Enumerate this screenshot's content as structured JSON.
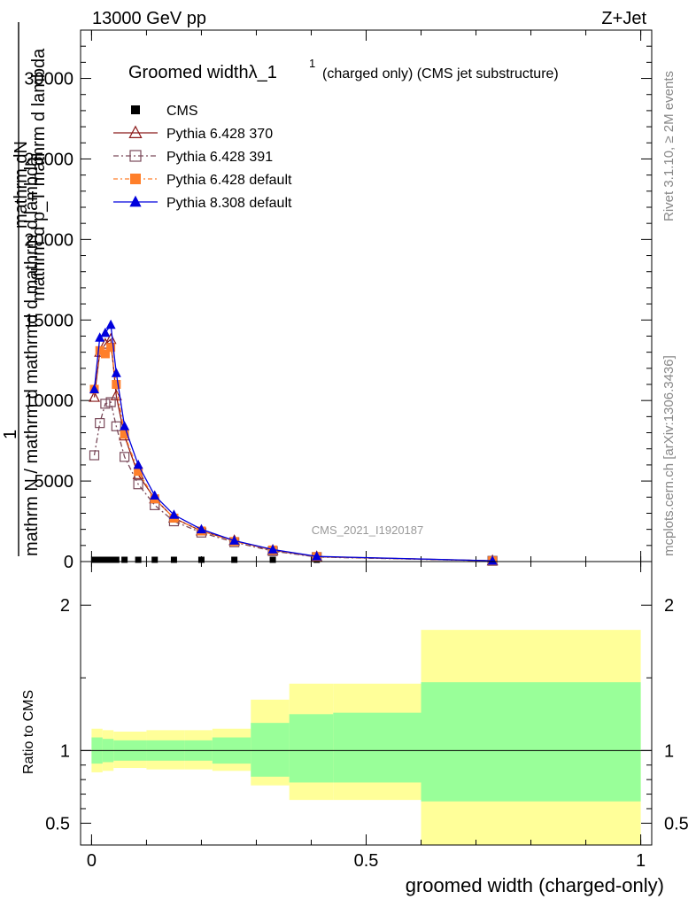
{
  "header": {
    "left": "13000 GeV pp",
    "right": "Z+Jet"
  },
  "side": {
    "rivet": "Rivet 3.1.10, ≥ 2M events",
    "mcplots": "mcplots.cern.ch [arXiv:1306.3436]"
  },
  "watermark": "CMS_2021_I1920187",
  "colors": {
    "green": "#99ff99",
    "yellow": "#ffff99"
  },
  "chart_data": [
    {
      "type": "line",
      "title": "Groomed widthλ_1",
      "title_sup": "1",
      "subtitle": "(charged only) (CMS jet substructure)",
      "ylabel_parts": [
        "mathrm dN",
        "mathrm d p_T mathrm d lambda",
        "1",
        "mathrm N / mathrm d mathrmd d mathrm d lambda"
      ],
      "xlim": [
        -0.02,
        1.02
      ],
      "ylim": [
        0,
        33000
      ],
      "yticks": [
        0,
        5000,
        10000,
        15000,
        20000,
        25000,
        30000
      ],
      "ytick_labels": [
        "0",
        "5000",
        "10000",
        "15000",
        "20000",
        "25000",
        "30000"
      ],
      "legend_position": "top-left",
      "series": [
        {
          "name": "CMS",
          "color": "#000000",
          "marker": "square",
          "x": [
            0.005,
            0.015,
            0.025,
            0.035,
            0.045,
            0.06,
            0.085,
            0.115,
            0.15,
            0.2,
            0.26,
            0.33,
            0.41,
            0.73
          ],
          "y": [
            0,
            0,
            0,
            0,
            0,
            0,
            0,
            0,
            0,
            0,
            0,
            0,
            0,
            0
          ]
        },
        {
          "name": "Pythia 6.428 370",
          "color": "#8b1a1a",
          "marker": "triangle-open",
          "x": [
            0.005,
            0.015,
            0.025,
            0.035,
            0.045,
            0.06,
            0.085,
            0.115,
            0.15,
            0.2,
            0.26,
            0.33,
            0.41,
            0.73
          ],
          "y": [
            10200,
            13000,
            13500,
            13800,
            10300,
            7800,
            5400,
            3900,
            2700,
            1900,
            1300,
            700,
            300,
            50
          ]
        },
        {
          "name": "Pythia 6.428 391",
          "color": "#7a4a5a",
          "marker": "square-open",
          "x": [
            0.005,
            0.015,
            0.025,
            0.035,
            0.045,
            0.06,
            0.085,
            0.115,
            0.15,
            0.2,
            0.26,
            0.33,
            0.41,
            0.73
          ],
          "y": [
            6600,
            8600,
            9800,
            9900,
            8400,
            6500,
            4800,
            3500,
            2500,
            1800,
            1200,
            650,
            280,
            45
          ]
        },
        {
          "name": "Pythia 6.428 default",
          "color": "#ff7f2a",
          "marker": "square",
          "x": [
            0.005,
            0.015,
            0.025,
            0.035,
            0.045,
            0.06,
            0.085,
            0.115,
            0.15,
            0.2,
            0.26,
            0.33,
            0.41,
            0.73
          ],
          "y": [
            10700,
            13100,
            12900,
            13300,
            11000,
            7900,
            5600,
            3900,
            2700,
            1900,
            1250,
            720,
            310,
            48
          ]
        },
        {
          "name": "Pythia 8.308 default",
          "color": "#0000dd",
          "marker": "triangle",
          "x": [
            0.005,
            0.015,
            0.025,
            0.035,
            0.045,
            0.06,
            0.085,
            0.115,
            0.15,
            0.2,
            0.26,
            0.33,
            0.41,
            0.73
          ],
          "y": [
            10700,
            13900,
            14200,
            14700,
            11700,
            8400,
            6000,
            4100,
            2900,
            2000,
            1300,
            750,
            320,
            50
          ]
        }
      ]
    },
    {
      "type": "area",
      "ylabel": "Ratio to CMS",
      "xlabel": "groomed width (charged-only)",
      "xlim": [
        -0.02,
        1.02
      ],
      "ylim": [
        0.35,
        2.3
      ],
      "xticks": [
        0,
        0.5,
        1
      ],
      "xtick_labels": [
        "0",
        "0.5",
        "1"
      ],
      "yticks": [
        0.5,
        1,
        2
      ],
      "ytick_labels": [
        "0.5",
        "1",
        "2"
      ],
      "bins": [
        {
          "x0": 0.0,
          "x1": 0.02,
          "g": [
            0.91,
            1.09
          ],
          "yl": [
            0.85,
            1.15
          ]
        },
        {
          "x0": 0.02,
          "x1": 0.04,
          "g": [
            0.92,
            1.08
          ],
          "yl": [
            0.86,
            1.14
          ]
        },
        {
          "x0": 0.04,
          "x1": 0.1,
          "g": [
            0.93,
            1.07
          ],
          "yl": [
            0.88,
            1.13
          ]
        },
        {
          "x0": 0.1,
          "x1": 0.17,
          "g": [
            0.93,
            1.07
          ],
          "yl": [
            0.87,
            1.14
          ]
        },
        {
          "x0": 0.17,
          "x1": 0.22,
          "g": [
            0.93,
            1.07
          ],
          "yl": [
            0.87,
            1.14
          ]
        },
        {
          "x0": 0.22,
          "x1": 0.29,
          "g": [
            0.91,
            1.09
          ],
          "yl": [
            0.86,
            1.15
          ]
        },
        {
          "x0": 0.29,
          "x1": 0.36,
          "g": [
            0.82,
            1.19
          ],
          "yl": [
            0.76,
            1.35
          ]
        },
        {
          "x0": 0.36,
          "x1": 0.44,
          "g": [
            0.78,
            1.25
          ],
          "yl": [
            0.66,
            1.46
          ]
        },
        {
          "x0": 0.44,
          "x1": 0.6,
          "g": [
            0.78,
            1.26
          ],
          "yl": [
            0.66,
            1.46
          ]
        },
        {
          "x0": 0.6,
          "x1": 1.0,
          "g": [
            0.65,
            1.47
          ],
          "yl": [
            0.35,
            1.83
          ]
        }
      ]
    }
  ]
}
